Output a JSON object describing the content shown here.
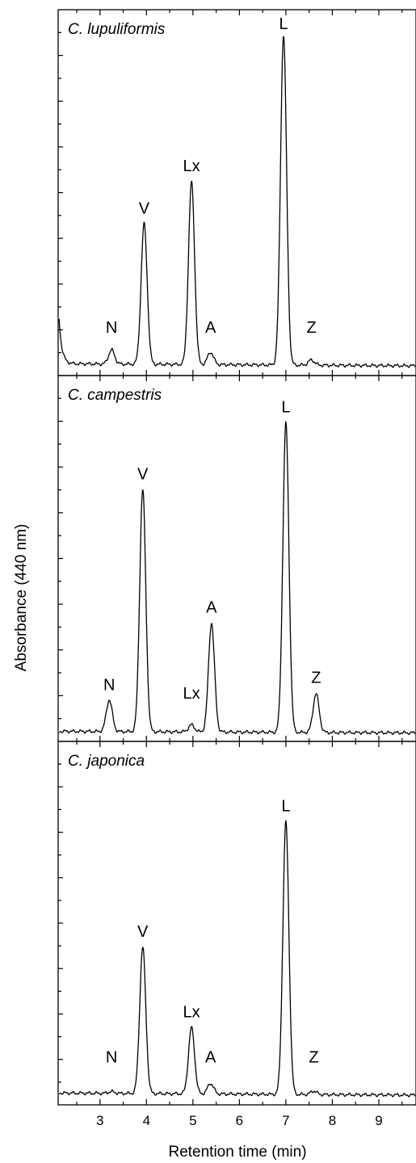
{
  "chart_data": {
    "type": "line",
    "ylabel": "Absorbance (440 nm)",
    "xlabel": "Retention time (min)",
    "xlim": [
      2.1,
      9.8
    ],
    "x_ticks": [
      3,
      4,
      5,
      6,
      7,
      8,
      9
    ],
    "panels": [
      {
        "title": "C. lupuliformis",
        "ylim": [
          0,
          1
        ],
        "baseline": 0.02,
        "tail": 0.18,
        "peaks": [
          {
            "label": "N",
            "x": 3.25,
            "height": 0.04
          },
          {
            "label": "V",
            "x": 3.95,
            "height": 0.4
          },
          {
            "label": "Lx",
            "x": 4.97,
            "height": 0.52
          },
          {
            "label": "A",
            "x": 5.38,
            "height": 0.035
          },
          {
            "label": "L",
            "x": 6.95,
            "height": 0.94
          },
          {
            "label": "Z",
            "x": 7.55,
            "height": 0.015
          }
        ]
      },
      {
        "title": "C. campestris",
        "ylim": [
          0,
          1
        ],
        "baseline": 0.015,
        "tail": 0.0,
        "peaks": [
          {
            "label": "N",
            "x": 3.2,
            "height": 0.09
          },
          {
            "label": "V",
            "x": 3.92,
            "height": 0.69
          },
          {
            "label": "Lx",
            "x": 4.97,
            "height": 0.02
          },
          {
            "label": "A",
            "x": 5.4,
            "height": 0.31
          },
          {
            "label": "L",
            "x": 7.0,
            "height": 0.88
          },
          {
            "label": "Z",
            "x": 7.65,
            "height": 0.11
          }
        ]
      },
      {
        "title": "C. japonica",
        "ylim": [
          0,
          1
        ],
        "baseline": 0.02,
        "tail": 0.0,
        "peaks": [
          {
            "label": "N",
            "x": 3.25,
            "height": 0.005
          },
          {
            "label": "V",
            "x": 3.92,
            "height": 0.42
          },
          {
            "label": "Lx",
            "x": 4.97,
            "height": 0.19
          },
          {
            "label": "A",
            "x": 5.38,
            "height": 0.03
          },
          {
            "label": "L",
            "x": 7.0,
            "height": 0.78
          },
          {
            "label": "Z",
            "x": 7.6,
            "height": 0.01
          }
        ]
      }
    ]
  }
}
